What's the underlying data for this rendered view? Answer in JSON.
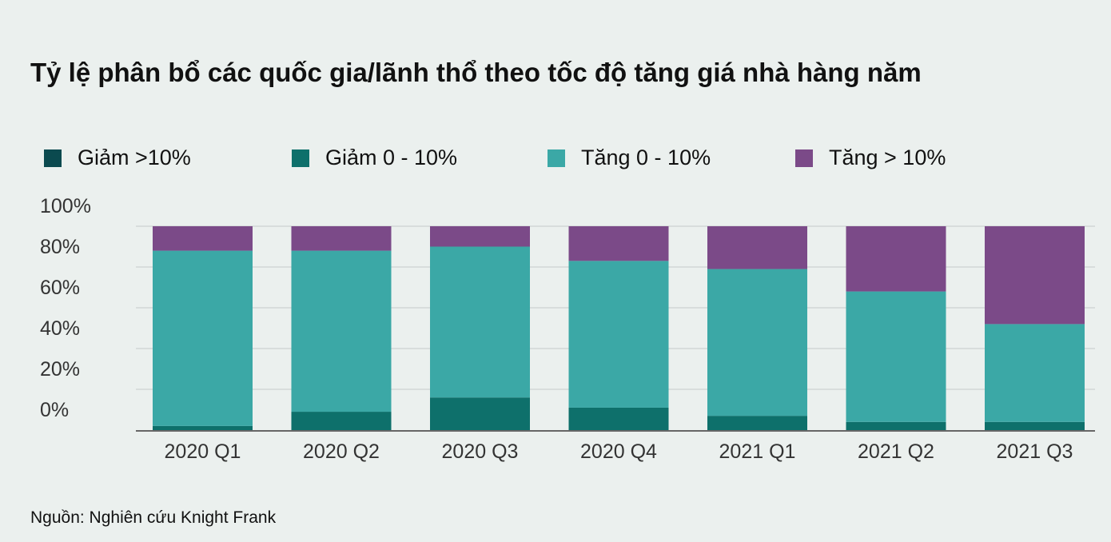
{
  "chart_data": {
    "type": "bar",
    "stacked": true,
    "title": "Tỷ lệ phân bổ các quốc gia/lãnh thổ theo tốc độ tăng giá nhà hàng năm",
    "xlabel": "",
    "ylabel": "",
    "ylim": [
      0,
      100
    ],
    "yticks": [
      "0%",
      "20%",
      "40%",
      "60%",
      "80%",
      "100%"
    ],
    "grid": true,
    "legend_position": "top",
    "categories": [
      "2020 Q1",
      "2020 Q2",
      "2020 Q3",
      "2020 Q4",
      "2021 Q1",
      "2021 Q2",
      "2021 Q3"
    ],
    "series": [
      {
        "name": "Giảm >10%",
        "color": "#0b4a4f",
        "values": [
          0,
          0,
          0,
          0,
          0,
          0,
          0
        ]
      },
      {
        "name": "Giảm 0 - 10%",
        "color": "#0e706b",
        "values": [
          2,
          9,
          16,
          11,
          7,
          4,
          4
        ]
      },
      {
        "name": "Tăng 0 - 10%",
        "color": "#3ba8a6",
        "values": [
          86,
          79,
          74,
          72,
          72,
          64,
          48
        ]
      },
      {
        "name": "Tăng > 10%",
        "color": "#7b4a88",
        "values": [
          12,
          12,
          10,
          17,
          21,
          32,
          48
        ]
      }
    ]
  },
  "source": "Nguồn: Nghiên cứu Knight Frank"
}
